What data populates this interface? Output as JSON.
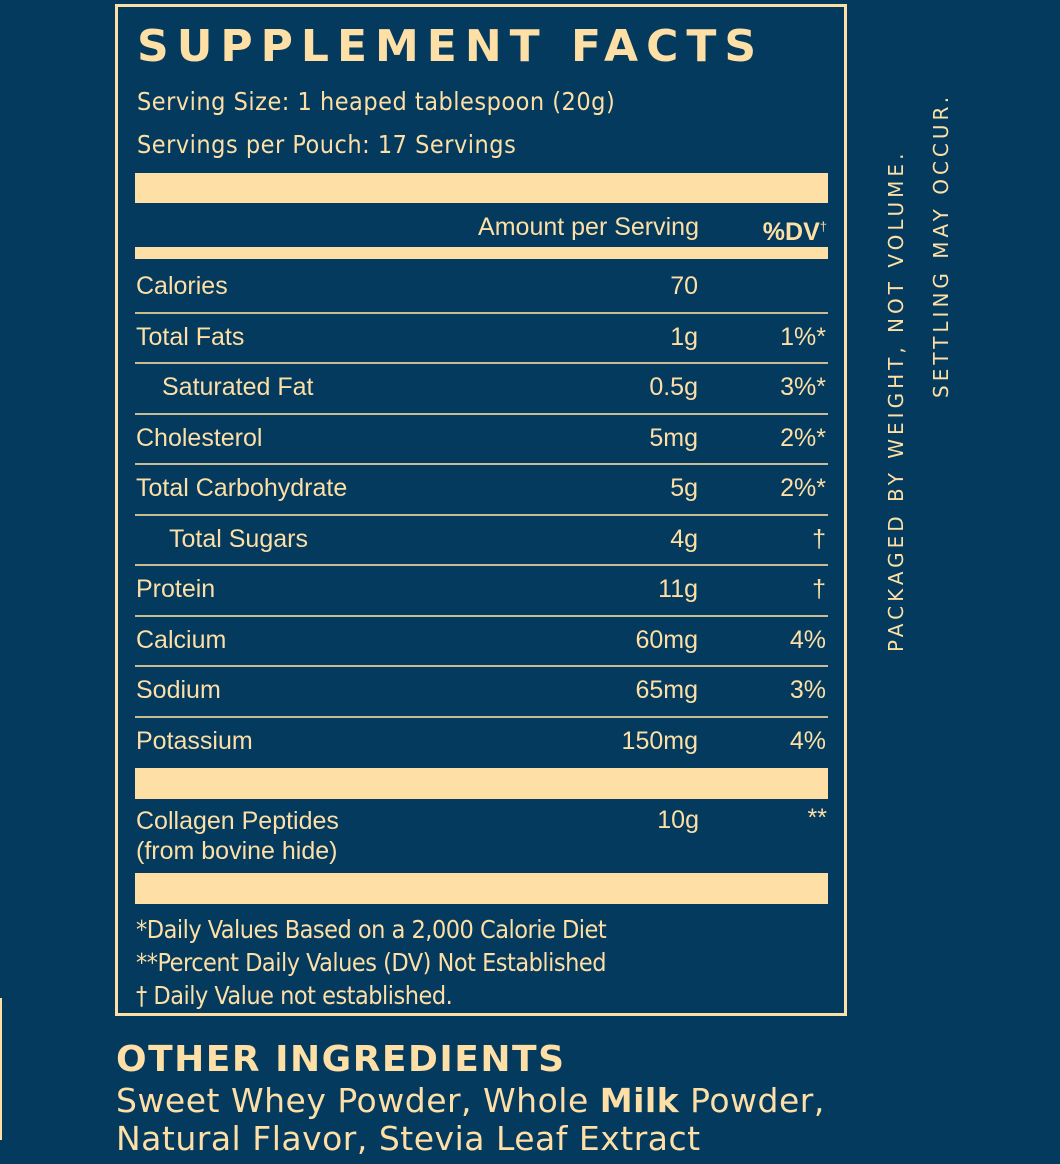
{
  "label": {
    "title": "SUPPLEMENT FACTS",
    "serving_size": "Serving Size: 1 heaped tablespoon (20g)",
    "servings_per": "Servings per Pouch: 17 Servings",
    "columns": {
      "amount": "Amount per Serving",
      "dv": "%DV",
      "dv_mark": "†"
    },
    "rows": [
      {
        "name": "Calories",
        "amount": "70",
        "dv": ""
      },
      {
        "name": "Total Fats",
        "amount": "1g",
        "dv": "1%*"
      },
      {
        "name": "Saturated Fat",
        "amount": "0.5g",
        "dv": "3%*"
      },
      {
        "name": "Cholesterol",
        "amount": "5mg",
        "dv": "2%*"
      },
      {
        "name": "Total Carbohydrate",
        "amount": "5g",
        "dv": "2%*"
      },
      {
        "name": "Total Sugars",
        "amount": "4g",
        "dv": "†"
      },
      {
        "name": "Protein",
        "amount": "11g",
        "dv": "†"
      },
      {
        "name": "Calcium",
        "amount": "60mg",
        "dv": "4%"
      },
      {
        "name": "Sodium",
        "amount": "65mg",
        "dv": "3%"
      },
      {
        "name": "Potassium",
        "amount": "150mg",
        "dv": "4%"
      }
    ],
    "collagen": {
      "name_line1": "Collagen Peptides",
      "name_line2": "(from bovine hide)",
      "amount": "10g",
      "dv": "**"
    },
    "footnotes": [
      "*Daily Values Based on a 2,000 Calorie Diet",
      "**Percent Daily Values (DV) Not Established",
      "† Daily Value not established."
    ]
  },
  "side_notes": {
    "line1": "PACKAGED BY WEIGHT, NOT VOLUME.",
    "line2": "SETTLING MAY OCCUR."
  },
  "other_ingredients": {
    "title": "OTHER INGREDIENTS",
    "line1_before": "Sweet Whey Powder, Whole ",
    "line1_bold": "Milk",
    "line1_after": " Powder,",
    "line2": "Natural Flavor, Stevia Leaf Extract"
  },
  "colors": {
    "background": "#033A5E",
    "foreground": "#FEDFA5",
    "divider": "#C9BC93"
  }
}
